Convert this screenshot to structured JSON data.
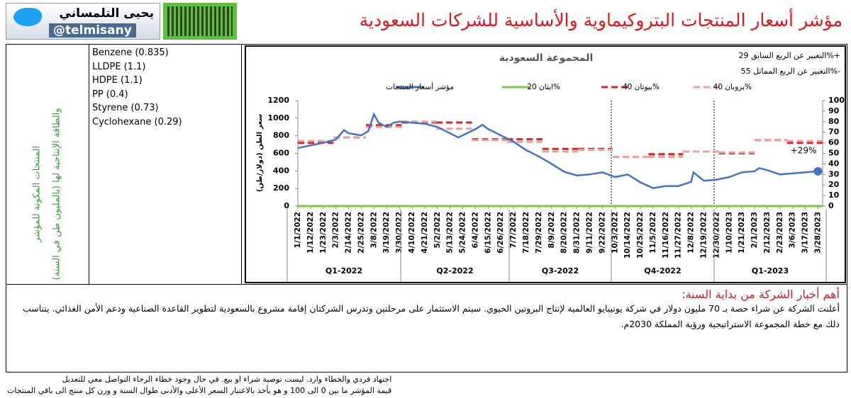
{
  "header": {
    "title": "مؤشر أسعار المنتجات البتروكيماوية والأساسية للشركات السعودية",
    "author": "يحيى التلمساني",
    "handle": "@telmisany"
  },
  "products": {
    "heading": [
      "المنتجات المكونة للمؤشر",
      "والطاقة الإنتاجية لها (بالمليون طن في السنة)"
    ],
    "items": [
      "Benzene (0.835)",
      "LLDPE (1.1)",
      "HDPE (1.1)",
      "PP (0.4)",
      "Styrene (0.73)",
      "Cyclohexane (0.29)"
    ]
  },
  "chart_data": {
    "type": "line",
    "title": "المجموعة السعودية",
    "ylabel": "سعر الطن (دولار/طن)",
    "changes": [
      "التغيير عن الربع السابق 29%+",
      "التغيير عن الربع المماثل 55%-"
    ],
    "annotations": [
      "+29%"
    ],
    "xlim": [
      "1/1/2022",
      "4/1/2023"
    ],
    "xticks": [
      "1/1/2022",
      "1/12/2022",
      "1/23/2022",
      "2/3/2022",
      "2/14/2022",
      "2/25/2022",
      "3/8/2022",
      "3/19/2022",
      "3/30/2022",
      "4/10/2022",
      "4/21/2022",
      "5/2/2022",
      "5/13/2022",
      "5/24/2022",
      "6/4/2022",
      "6/15/2022",
      "6/26/2022",
      "7/7/2022",
      "7/18/2022",
      "7/29/2022",
      "8/9/2022",
      "8/20/2022",
      "8/31/2022",
      "9/11/2022",
      "9/22/2022",
      "10/3/2022",
      "10/14/2022",
      "10/25/2022",
      "11/5/2022",
      "11/16/2022",
      "11/27/2022",
      "12/8/2022",
      "12/19/2022",
      "12/30/2022",
      "1/10/2023",
      "1/21/2023",
      "2/1/2023",
      "2/12/2023",
      "2/23/2023",
      "3/6/2023",
      "3/17/2023",
      "3/28/2023"
    ],
    "quarters": [
      "Q1-2022",
      "Q2-2022",
      "Q3-2022",
      "Q4-2022",
      "Q1-2023"
    ],
    "ylim": [
      0,
      1200
    ],
    "yticks": [
      0,
      200,
      400,
      600,
      800,
      1000,
      1200
    ],
    "y2lim": [
      0,
      100
    ],
    "y2ticks": [
      0,
      10,
      20,
      30,
      40,
      50,
      60,
      70,
      80,
      90,
      100
    ],
    "grid": false,
    "series": [
      {
        "name": "مؤشر أسعار المنتجات",
        "color": "#4472c4",
        "axis": "y2",
        "end_marker": true,
        "x": [
          "1/1/2022",
          "1/12/2022",
          "1/23/2022",
          "2/3/2022",
          "2/10/2022",
          "2/14/2022",
          "2/25/2022",
          "3/3/2022",
          "3/8/2022",
          "3/12/2022",
          "3/19/2022",
          "3/25/2022",
          "3/30/2022",
          "4/10/2022",
          "4/21/2022",
          "5/2/2022",
          "5/13/2022",
          "5/20/2022",
          "5/24/2022",
          "6/4/2022",
          "6/10/2022",
          "6/15/2022",
          "6/26/2022",
          "7/7/2022",
          "7/18/2022",
          "7/29/2022",
          "8/9/2022",
          "8/20/2022",
          "8/31/2022",
          "9/11/2022",
          "9/22/2022",
          "10/3/2022",
          "10/14/2022",
          "10/25/2022",
          "11/5/2022",
          "11/16/2022",
          "11/27/2022",
          "12/8/2022",
          "12/10/2022",
          "12/19/2022",
          "12/30/2022",
          "1/10/2023",
          "1/21/2023",
          "2/1/2023",
          "2/5/2023",
          "2/12/2023",
          "2/23/2023",
          "3/6/2023",
          "3/17/2023",
          "3/28/2023"
        ],
        "values": [
          55,
          57.5,
          60,
          63,
          72,
          69,
          67,
          71,
          87,
          79,
          75,
          79,
          80,
          79,
          78,
          75,
          69,
          65,
          67,
          73,
          77,
          73,
          67,
          61,
          53,
          47,
          40,
          32.5,
          29,
          30,
          32,
          27.5,
          30,
          22.5,
          17,
          19,
          19,
          23,
          32,
          24,
          25,
          27.5,
          32,
          33,
          36,
          34,
          30,
          31,
          32,
          33
        ]
      },
      {
        "name": "ايثان 20%",
        "color": "#7ac943",
        "step": true,
        "dash": false,
        "x": [
          "1/1/2022"
        ],
        "values": [
          0
        ]
      },
      {
        "name": "بيوتان 40%",
        "color": "#e02020",
        "step": true,
        "dash": true,
        "x": [
          "1/1/2022",
          "2/1/2022",
          "3/1/2022",
          "4/1/2022",
          "5/1/2022",
          "6/1/2022",
          "7/1/2022",
          "8/1/2022",
          "9/1/2022",
          "10/1/2022",
          "11/1/2022",
          "12/1/2022",
          "1/1/2023",
          "2/1/2023",
          "3/1/2023"
        ],
        "values": [
          720,
          780,
          920,
          950,
          950,
          760,
          760,
          650,
          650,
          560,
          590,
          620,
          600,
          750,
          720
        ]
      },
      {
        "name": "بروبان 40%",
        "color": "#e8a0a0",
        "step": true,
        "dash": true,
        "x": [
          "1/1/2022",
          "2/1/2022",
          "3/1/2022",
          "4/1/2022",
          "5/1/2022",
          "6/1/2022",
          "7/1/2022",
          "8/1/2022",
          "9/1/2022",
          "10/1/2022",
          "11/1/2022",
          "12/1/2022",
          "1/1/2023",
          "2/1/2023",
          "3/1/2023"
        ],
        "values": [
          740,
          780,
          900,
          960,
          880,
          750,
          730,
          620,
          640,
          560,
          560,
          620,
          610,
          750,
          740
        ]
      }
    ]
  },
  "news": {
    "heading": "أهم أخبار الشركة من بداية السنة:",
    "body": "أعلنت الشركة عن شراء حصة بـ 70 مليون دولار في شركة يونيبايو العالمية لإنتاج البروتين الحيوي. سيتم الاستثمار على مرحلتين وتدرس الشركتان إقامة مشروع بالسعودية لتطوير القاعدة الصناعية ودعم الأمن الغذائي. يتناسب ذلك مع خطة المجموعة الاستراتيجية ورؤية المملكة 2030م."
  },
  "footer": [
    "اجتهاد فردي والخطاء وارد. ليست توصية شراء او بيع. في حال وجود خطاء الرجاء التواصل معي للتعديل",
    "قيمة المؤشر ما بين 0 الى 100 و هو يأخذ بالاعتبار السعر الأعلى والأدنى طوال السنة و وزن كل منتج الى باقي المنتجات"
  ]
}
